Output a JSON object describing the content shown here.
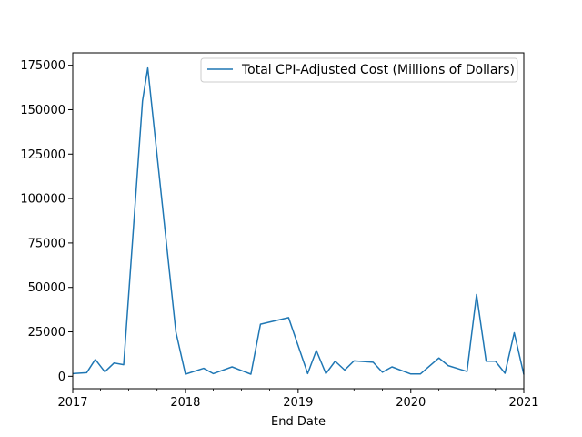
{
  "chart_data": {
    "type": "line",
    "xlabel": "End Date",
    "ylabel": "",
    "title": "",
    "xlim": [
      "2017-01-01",
      "2021-01-01"
    ],
    "ylim": [
      -7000,
      182000
    ],
    "x_ticks": [
      {
        "value": "2017-01-01",
        "label": "2017"
      },
      {
        "value": "2018-01-01",
        "label": "2018"
      },
      {
        "value": "2019-01-01",
        "label": "2019"
      },
      {
        "value": "2020-01-01",
        "label": "2020"
      },
      {
        "value": "2021-01-01",
        "label": "2021"
      }
    ],
    "y_ticks": [
      0,
      25000,
      50000,
      75000,
      100000,
      125000,
      150000,
      175000
    ],
    "y_tick_labels": [
      "0",
      "25000",
      "50000",
      "75000",
      "100000",
      "125000",
      "150000",
      "175000"
    ],
    "legend": {
      "position": "upper right"
    },
    "grid": false,
    "series": [
      {
        "name": "Total CPI-Adjusted Cost (Millions of Dollars)",
        "color": "#1f77b4",
        "x": [
          "2017-01-01",
          "2017-02-15",
          "2017-03-15",
          "2017-04-15",
          "2017-05-15",
          "2017-06-15",
          "2017-08-15",
          "2017-09-01",
          "2017-12-01",
          "2018-01-01",
          "2018-03-01",
          "2018-04-01",
          "2018-06-01",
          "2018-07-01",
          "2018-08-01",
          "2018-09-01",
          "2018-12-01",
          "2019-02-01",
          "2019-03-01",
          "2019-04-01",
          "2019-05-01",
          "2019-06-01",
          "2019-07-01",
          "2019-09-01",
          "2019-10-01",
          "2019-11-01",
          "2020-01-01",
          "2020-02-01",
          "2020-04-01",
          "2020-05-01",
          "2020-07-01",
          "2020-08-01",
          "2020-09-01",
          "2020-10-01",
          "2020-11-01",
          "2020-12-01",
          "2021-01-01"
        ],
        "y": [
          1500,
          2000,
          9500,
          2500,
          7500,
          6500,
          155000,
          173500,
          25000,
          1200,
          4500,
          1500,
          5300,
          3300,
          1200,
          29300,
          33000,
          1500,
          14500,
          1500,
          8500,
          3500,
          8700,
          7900,
          2300,
          5300,
          1300,
          1300,
          10300,
          6000,
          2700,
          46000,
          8500,
          8500,
          1700,
          24500,
          1000
        ]
      }
    ]
  }
}
